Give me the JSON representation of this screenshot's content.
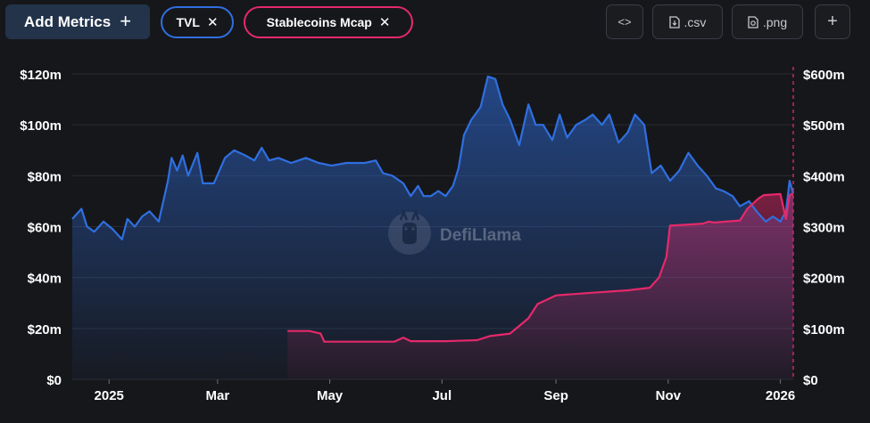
{
  "toolbar": {
    "add_metrics_label": "Add Metrics",
    "add_metrics_icon": "plus-icon",
    "chips": [
      {
        "label": "TVL",
        "color": "#2f6fe0"
      },
      {
        "label": "Stablecoins Mcap",
        "color": "#e5296a"
      }
    ],
    "embed_label": "<>",
    "csv_label": ".csv",
    "png_label": ".png",
    "add_label": "+"
  },
  "watermark": "DefiLlama",
  "chart_data": {
    "type": "area",
    "x_ticks": [
      "2025",
      "Mar",
      "May",
      "Jul",
      "Sep",
      "Nov",
      "2026"
    ],
    "x_tick_dates": [
      "2025-01-01",
      "2025-03-01",
      "2025-05-01",
      "2025-07-01",
      "2025-09-01",
      "2025-11-01",
      "2026-01-01"
    ],
    "xlim": [
      "2024-12-12",
      "2026-01-08"
    ],
    "y_left": {
      "ticks": [
        "$0",
        "$20m",
        "$40m",
        "$60m",
        "$80m",
        "$100m",
        "$120m"
      ],
      "ylim": [
        0,
        120
      ]
    },
    "y_right": {
      "ticks": [
        "$0",
        "$100m",
        "$200m",
        "$300m",
        "$400m",
        "$500m",
        "$600m"
      ],
      "ylim": [
        0,
        600
      ]
    },
    "grid": true,
    "series": [
      {
        "name": "TVL",
        "axis": "left",
        "color": "#2f6fe0",
        "points": [
          [
            "2024-12-12",
            63
          ],
          [
            "2024-12-17",
            67
          ],
          [
            "2024-12-20",
            60
          ],
          [
            "2024-12-24",
            58
          ],
          [
            "2024-12-29",
            62
          ],
          [
            "2025-01-03",
            59
          ],
          [
            "2025-01-08",
            55
          ],
          [
            "2025-01-11",
            63
          ],
          [
            "2025-01-15",
            60
          ],
          [
            "2025-01-19",
            64
          ],
          [
            "2025-01-23",
            66
          ],
          [
            "2025-01-28",
            62
          ],
          [
            "2025-02-02",
            78
          ],
          [
            "2025-02-04",
            87
          ],
          [
            "2025-02-07",
            82
          ],
          [
            "2025-02-10",
            88
          ],
          [
            "2025-02-13",
            80
          ],
          [
            "2025-02-18",
            89
          ],
          [
            "2025-02-21",
            77
          ],
          [
            "2025-02-27",
            77
          ],
          [
            "2025-03-05",
            87
          ],
          [
            "2025-03-10",
            90
          ],
          [
            "2025-03-16",
            88
          ],
          [
            "2025-03-21",
            86
          ],
          [
            "2025-03-25",
            91
          ],
          [
            "2025-03-29",
            86
          ],
          [
            "2025-04-03",
            87
          ],
          [
            "2025-04-10",
            85
          ],
          [
            "2025-04-18",
            87
          ],
          [
            "2025-04-25",
            85
          ],
          [
            "2025-05-02",
            84
          ],
          [
            "2025-05-10",
            85
          ],
          [
            "2025-05-20",
            85
          ],
          [
            "2025-05-26",
            86
          ],
          [
            "2025-05-30",
            81
          ],
          [
            "2025-06-04",
            80
          ],
          [
            "2025-06-10",
            77
          ],
          [
            "2025-06-14",
            72
          ],
          [
            "2025-06-18",
            76
          ],
          [
            "2025-06-21",
            72
          ],
          [
            "2025-06-25",
            72
          ],
          [
            "2025-06-29",
            74
          ],
          [
            "2025-07-03",
            72
          ],
          [
            "2025-07-07",
            76
          ],
          [
            "2025-07-10",
            83
          ],
          [
            "2025-07-13",
            96
          ],
          [
            "2025-07-17",
            102
          ],
          [
            "2025-07-22",
            107
          ],
          [
            "2025-07-26",
            119
          ],
          [
            "2025-07-30",
            118
          ],
          [
            "2025-08-03",
            108
          ],
          [
            "2025-08-07",
            102
          ],
          [
            "2025-08-12",
            92
          ],
          [
            "2025-08-17",
            108
          ],
          [
            "2025-08-21",
            100
          ],
          [
            "2025-08-25",
            100
          ],
          [
            "2025-08-30",
            94
          ],
          [
            "2025-09-03",
            104
          ],
          [
            "2025-09-07",
            95
          ],
          [
            "2025-09-12",
            100
          ],
          [
            "2025-09-17",
            102
          ],
          [
            "2025-09-21",
            104
          ],
          [
            "2025-09-26",
            100
          ],
          [
            "2025-09-30",
            104
          ],
          [
            "2025-10-05",
            93
          ],
          [
            "2025-10-10",
            97
          ],
          [
            "2025-10-14",
            104
          ],
          [
            "2025-10-19",
            100
          ],
          [
            "2025-10-23",
            81
          ],
          [
            "2025-10-28",
            84
          ],
          [
            "2025-11-02",
            78
          ],
          [
            "2025-11-07",
            82
          ],
          [
            "2025-11-12",
            89
          ],
          [
            "2025-11-17",
            84
          ],
          [
            "2025-11-22",
            80
          ],
          [
            "2025-11-27",
            75
          ],
          [
            "2025-12-01",
            74
          ],
          [
            "2025-12-06",
            72
          ],
          [
            "2025-12-10",
            68
          ],
          [
            "2025-12-15",
            70
          ],
          [
            "2025-12-19",
            66
          ],
          [
            "2025-12-24",
            62
          ],
          [
            "2025-12-28",
            64
          ],
          [
            "2026-01-01",
            62
          ],
          [
            "2026-01-04",
            66
          ],
          [
            "2026-01-06",
            78
          ],
          [
            "2026-01-08",
            73
          ]
        ]
      },
      {
        "name": "Stablecoins Mcap",
        "axis": "right",
        "color": "#e5296a",
        "points": [
          [
            "2025-04-08",
            95
          ],
          [
            "2025-04-20",
            95
          ],
          [
            "2025-04-26",
            90
          ],
          [
            "2025-04-28",
            74
          ],
          [
            "2025-05-04",
            74
          ],
          [
            "2025-05-20",
            74
          ],
          [
            "2025-06-05",
            74
          ],
          [
            "2025-06-10",
            82
          ],
          [
            "2025-06-14",
            75
          ],
          [
            "2025-07-03",
            75
          ],
          [
            "2025-07-20",
            77
          ],
          [
            "2025-07-27",
            85
          ],
          [
            "2025-08-07",
            90
          ],
          [
            "2025-08-17",
            120
          ],
          [
            "2025-08-22",
            148
          ],
          [
            "2025-09-01",
            165
          ],
          [
            "2025-09-20",
            170
          ],
          [
            "2025-10-10",
            175
          ],
          [
            "2025-10-22",
            180
          ],
          [
            "2025-10-27",
            200
          ],
          [
            "2025-10-31",
            240
          ],
          [
            "2025-11-02",
            302
          ],
          [
            "2025-11-20",
            306
          ],
          [
            "2025-11-23",
            310
          ],
          [
            "2025-11-26",
            308
          ],
          [
            "2025-12-10",
            312
          ],
          [
            "2025-12-14",
            335
          ],
          [
            "2025-12-20",
            355
          ],
          [
            "2025-12-23",
            362
          ],
          [
            "2026-01-01",
            364
          ],
          [
            "2026-01-04",
            315
          ],
          [
            "2026-01-06",
            362
          ],
          [
            "2026-01-08",
            365
          ]
        ]
      }
    ]
  }
}
